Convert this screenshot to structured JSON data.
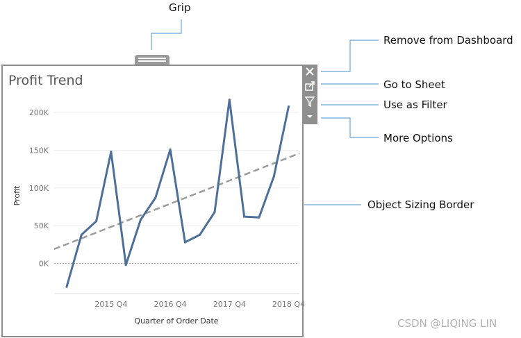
{
  "callouts": {
    "grip": "Grip",
    "remove": "Remove from Dashboard",
    "go_to_sheet": "Go to Sheet",
    "use_as_filter": "Use as Filter",
    "more_options": "More Options",
    "sizing_border": "Object Sizing Border"
  },
  "toolbar": {
    "icons": [
      "close-icon",
      "external-link-icon",
      "filter-icon",
      "caret-down-icon"
    ]
  },
  "sheet": {
    "title": "Profit Trend"
  },
  "chart_data": {
    "type": "line",
    "title": "Profit Trend",
    "xlabel": "Quarter of Order Date",
    "ylabel": "Profit",
    "ylim": [
      -40000,
      225000
    ],
    "yticks": [
      0,
      50000,
      100000,
      150000,
      200000
    ],
    "ytick_labels": [
      "0K",
      "50K",
      "100K",
      "150K",
      "200K"
    ],
    "x": [
      "2015 Q1",
      "2015 Q2",
      "2015 Q3",
      "2015 Q4",
      "2016 Q1",
      "2016 Q2",
      "2016 Q3",
      "2016 Q4",
      "2017 Q1",
      "2017 Q2",
      "2017 Q3",
      "2017 Q4",
      "2018 Q1",
      "2018 Q2",
      "2018 Q3",
      "2018 Q4"
    ],
    "xtick_labels": [
      "2015 Q4",
      "2016 Q4",
      "2017 Q4",
      "2018 Q4"
    ],
    "xtick_positions": [
      "2015 Q4",
      "2016 Q4",
      "2017 Q4",
      "2018 Q4"
    ],
    "series": [
      {
        "color": "#4e6f99",
        "values": [
          -31000,
          38000,
          56000,
          148000,
          -2000,
          58000,
          87000,
          151000,
          28000,
          38000,
          68000,
          217000,
          62000,
          61000,
          115000,
          208000
        ]
      }
    ],
    "trend_line": {
      "color": "#9b9b9b",
      "start": 19000,
      "end": 146000
    },
    "grid": true,
    "legend": "none"
  },
  "watermark": "CSDN @LIQING LIN"
}
